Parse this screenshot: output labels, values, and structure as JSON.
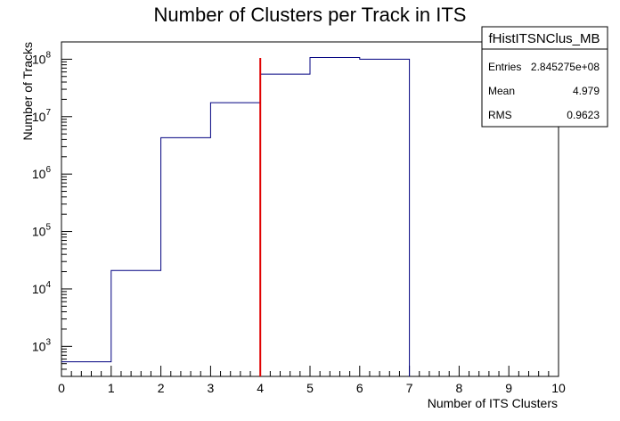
{
  "chart_data": {
    "type": "histogram",
    "title": "Number of Clusters per Track in ITS",
    "xlabel": "Number of ITS Clusters",
    "ylabel": "Number of Tracks",
    "xlim": [
      0,
      10
    ],
    "ylim": [
      300,
      200000000
    ],
    "yscale": "log",
    "grid": false,
    "bin_edges": [
      0,
      1,
      2,
      3,
      4,
      5,
      6,
      7
    ],
    "values": [
      540,
      21000,
      4300000,
      17500000,
      55000000,
      107000000,
      100000000
    ],
    "line_color": "#000080",
    "marker_line": {
      "x": 4,
      "y_top": 105000000,
      "color": "#e00000"
    },
    "x_ticks": [
      "0",
      "1",
      "2",
      "3",
      "4",
      "5",
      "6",
      "7",
      "8",
      "9",
      "10"
    ],
    "y_ticks": [
      {
        "value": 1000,
        "base": "10",
        "exp": "3"
      },
      {
        "value": 10000,
        "base": "10",
        "exp": "4"
      },
      {
        "value": 100000,
        "base": "10",
        "exp": "5"
      },
      {
        "value": 1000000,
        "base": "10",
        "exp": "6"
      },
      {
        "value": 10000000,
        "base": "10",
        "exp": "7"
      },
      {
        "value": 100000000,
        "base": "10",
        "exp": "8"
      }
    ]
  },
  "stats_box": {
    "title": "fHistITSNClus_MB",
    "rows": [
      {
        "label": "Entries",
        "value": "2.845275e+08"
      },
      {
        "label": "Mean",
        "value": "4.979"
      },
      {
        "label": "RMS",
        "value": "0.9623"
      }
    ]
  }
}
